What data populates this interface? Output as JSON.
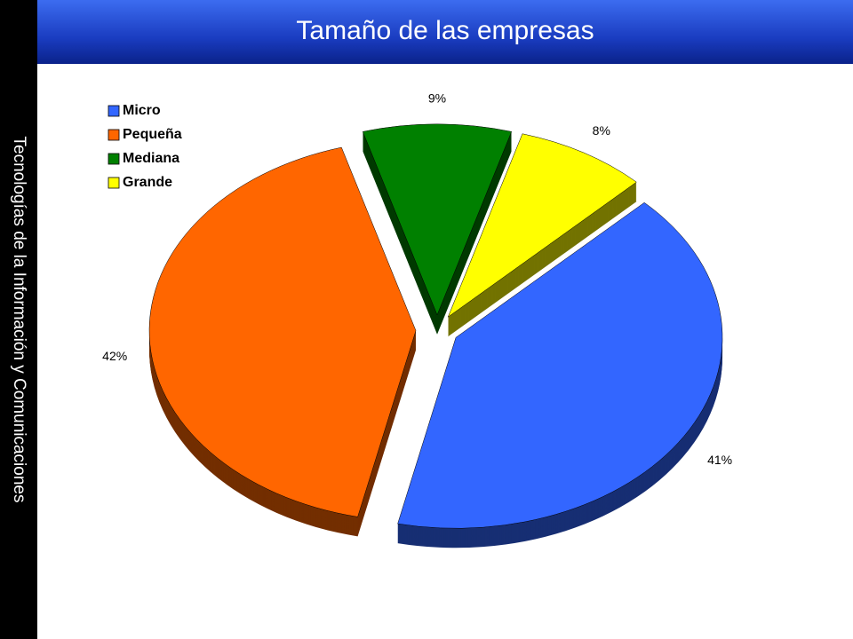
{
  "slide": {
    "sidebar": "Tecnologías de la Información y Comunicaciones"
  },
  "chart_data": {
    "type": "pie",
    "title": "Tamaño de las empresas",
    "categories": [
      "Micro",
      "Pequeña",
      "Mediana",
      "Grande"
    ],
    "values": [
      41,
      42,
      9,
      8
    ],
    "value_labels": [
      "41%",
      "42%",
      "9%",
      "8%"
    ],
    "colors": [
      "#3366ff",
      "#ff6600",
      "#008000",
      "#ffff00"
    ],
    "legend": "top-left"
  }
}
